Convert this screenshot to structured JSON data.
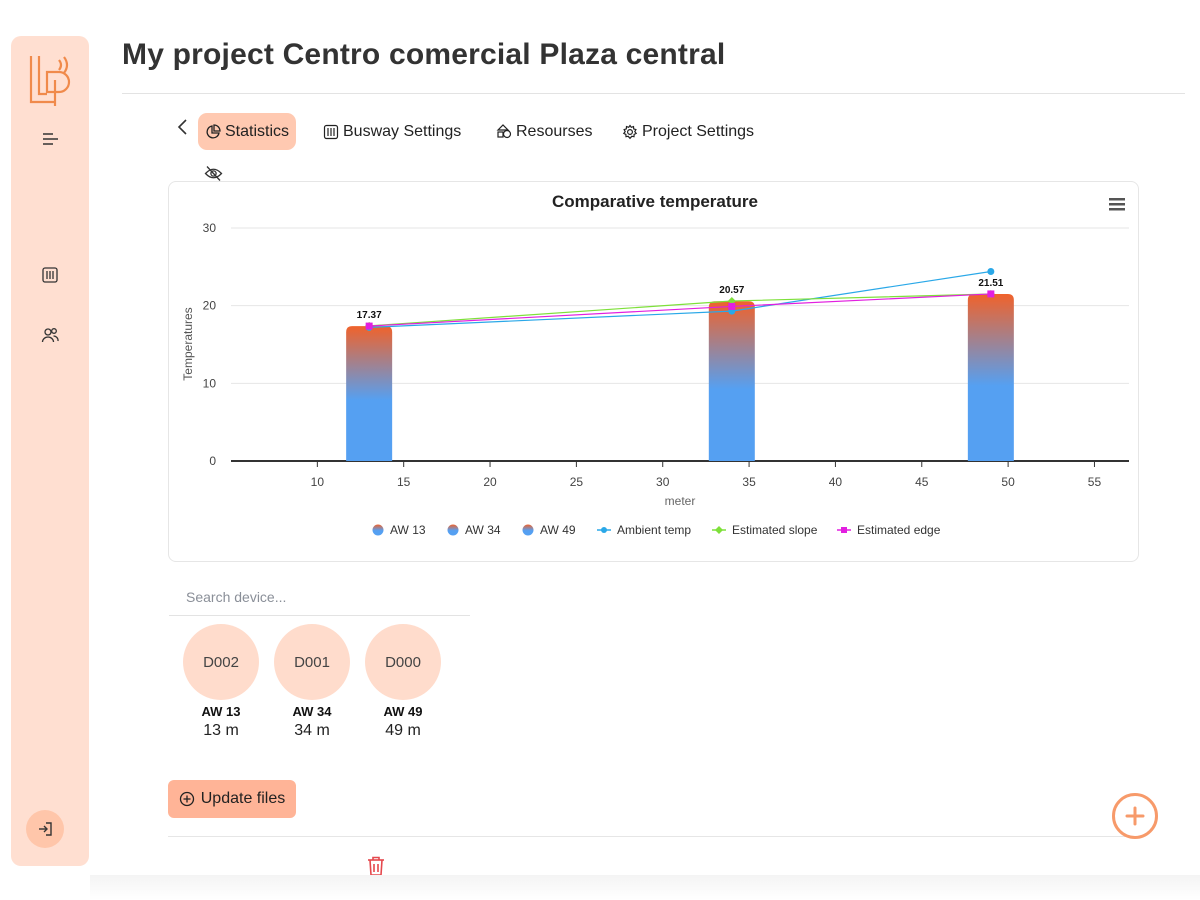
{
  "page": {
    "title": "My project Centro comercial Plaza central"
  },
  "sidebar": {
    "logo_text": "LP",
    "items": [
      {
        "icon": "menu-icon"
      },
      {
        "icon": "building-icon"
      },
      {
        "icon": "users-icon"
      }
    ],
    "logout_icon": "logout-icon"
  },
  "tabs": [
    {
      "label": "Statistics",
      "icon": "pie-chart-icon",
      "active": true
    },
    {
      "label": "Busway Settings",
      "icon": "building-icon",
      "active": false
    },
    {
      "label": "Resourses",
      "icon": "shapes-icon",
      "active": false
    },
    {
      "label": "Project Settings",
      "icon": "gear-icon",
      "active": false
    }
  ],
  "chart_menu_icon": "hamburger-menu-icon",
  "chart_data": {
    "type": "bar",
    "title": "Comparative temperature",
    "xlabel": "meter",
    "ylabel": "Temperatures",
    "xlim": [
      5,
      57
    ],
    "ylim": [
      0,
      30
    ],
    "x_ticks": [
      10,
      15,
      20,
      25,
      30,
      35,
      40,
      45,
      50,
      55
    ],
    "y_ticks": [
      0,
      10,
      20,
      30
    ],
    "grid": true,
    "legend_position": "bottom",
    "bars": [
      {
        "name": "AW 13",
        "x": 13,
        "value": 17.37,
        "label": "17.37"
      },
      {
        "name": "AW 34",
        "x": 34,
        "value": 20.57,
        "label": "20.57"
      },
      {
        "name": "AW 49",
        "x": 49,
        "value": 21.51,
        "label": "21.51"
      }
    ],
    "series": [
      {
        "name": "Ambient temp",
        "type": "line",
        "color": "#2aa8e8",
        "marker": "circle",
        "points": [
          [
            13,
            17.2
          ],
          [
            34,
            19.3
          ],
          [
            49,
            24.4
          ]
        ]
      },
      {
        "name": "Estimated slope",
        "type": "line",
        "color": "#7ee03a",
        "marker": "diamond",
        "points": [
          [
            13,
            17.4
          ],
          [
            34,
            20.6
          ],
          [
            49,
            21.5
          ]
        ]
      },
      {
        "name": "Estimated edge",
        "type": "line",
        "color": "#e21fe0",
        "marker": "square",
        "points": [
          [
            13,
            17.37
          ],
          [
            34,
            19.9
          ],
          [
            49,
            21.51
          ]
        ]
      }
    ],
    "bar_gradient": {
      "top": "#f0622b",
      "bottom": "#55a0f2"
    },
    "legend": [
      "AW 13",
      "AW 34",
      "AW 49",
      "Ambient temp",
      "Estimated slope",
      "Estimated edge"
    ]
  },
  "search": {
    "placeholder": "Search device...",
    "value": ""
  },
  "devices": [
    {
      "id": "D002",
      "name": "AW 13",
      "distance": "13 m"
    },
    {
      "id": "D001",
      "name": "AW 34",
      "distance": "34 m"
    },
    {
      "id": "D000",
      "name": "AW 49",
      "distance": "49 m"
    }
  ],
  "update_button": {
    "label": "Update files",
    "icon": "plus-circle-icon"
  },
  "delete_icon": "trash-icon",
  "fab_icon": "plus-icon",
  "colors": {
    "sidebar": "#ffdfd1",
    "accent": "#ffc9b1",
    "fab": "#f79a6a",
    "danger": "#e5484d"
  }
}
